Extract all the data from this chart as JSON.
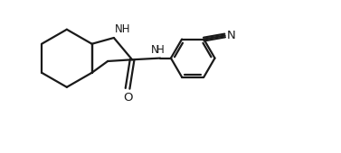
{
  "background_color": "#ffffff",
  "line_color": "#1a1a1a",
  "line_width": 1.6,
  "font_size_label": 8.5,
  "figsize": [
    3.77,
    1.7
  ],
  "dpi": 100,
  "xlim": [
    0,
    11
  ],
  "ylim": [
    0,
    5
  ]
}
